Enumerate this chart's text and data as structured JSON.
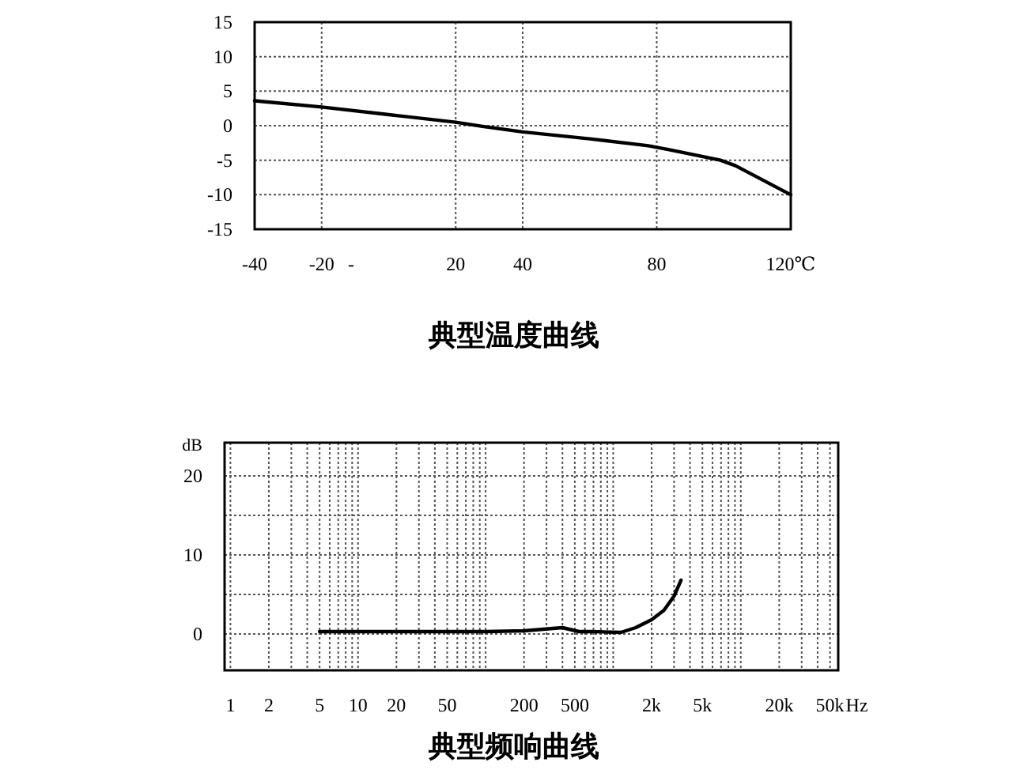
{
  "chart_data": [
    {
      "type": "line",
      "title": "典型温度曲线",
      "x": [
        -40,
        -20,
        0,
        20,
        28,
        40,
        60,
        77.5,
        84,
        99,
        103.5,
        120
      ],
      "series": [
        {
          "color": "#000000",
          "values": [
            3.6,
            2.7,
            1.6,
            0.5,
            -0.1,
            -0.9,
            -1.9,
            -2.9,
            -3.5,
            -5,
            -5.8,
            -10
          ]
        }
      ],
      "xlim": [
        -40,
        120
      ],
      "ylim": [
        -15,
        15
      ],
      "xticks": [
        -40,
        -20,
        20,
        40,
        80,
        {
          "value": 120,
          "label": "120℃"
        }
      ],
      "yticks": [
        -15,
        -10,
        -5,
        0,
        5,
        10,
        15
      ],
      "grid": true,
      "annotations": [
        "-"
      ]
    },
    {
      "type": "line",
      "title": "典型频响曲线",
      "ylabel": "dB",
      "log": "x",
      "x": [
        5,
        10,
        20,
        50,
        100,
        200,
        400,
        540,
        700,
        1150,
        1500,
        2000,
        2500,
        3000,
        3400
      ],
      "series": [
        {
          "color": "#000000",
          "values": [
            0.3,
            0.3,
            0.3,
            0.3,
            0.3,
            0.4,
            0.8,
            0.3,
            0.3,
            0.2,
            0.8,
            1.8,
            3,
            4.8,
            6.8
          ]
        }
      ],
      "xlim": [
        0.9,
        58000
      ],
      "ylim": [
        -4.6,
        24.2
      ],
      "xticks": [
        1,
        2,
        {
          "value": 3,
          "label": null
        },
        {
          "value": 4,
          "label": null
        },
        5,
        {
          "value": 6,
          "label": null
        },
        {
          "value": 7,
          "label": null
        },
        {
          "value": 8,
          "label": null
        },
        {
          "value": 9,
          "label": null
        },
        10,
        20,
        {
          "value": 30,
          "label": null
        },
        {
          "value": 40,
          "label": null
        },
        50,
        {
          "value": 60,
          "label": null
        },
        {
          "value": 70,
          "label": null
        },
        {
          "value": 80,
          "label": null
        },
        {
          "value": 90,
          "label": null
        },
        {
          "value": 100,
          "label": null
        },
        200,
        {
          "value": 300,
          "label": null
        },
        {
          "value": 400,
          "label": null
        },
        500,
        {
          "value": 600,
          "label": null
        },
        {
          "value": 700,
          "label": null
        },
        {
          "value": 800,
          "label": null
        },
        {
          "value": 900,
          "label": null
        },
        {
          "value": 1000,
          "label": null
        },
        {
          "value": 2000,
          "label": "2k"
        },
        {
          "value": 3000,
          "label": null
        },
        {
          "value": 4000,
          "label": null
        },
        {
          "value": 5000,
          "label": "5k"
        },
        {
          "value": 6000,
          "label": null
        },
        {
          "value": 7000,
          "label": null
        },
        {
          "value": 8000,
          "label": null
        },
        {
          "value": 9000,
          "label": null
        },
        {
          "value": 10000,
          "label": null
        },
        {
          "value": 20000,
          "label": "20k"
        },
        {
          "value": 30000,
          "label": null
        },
        {
          "value": 40000,
          "label": null
        },
        {
          "value": 50000,
          "label": "50k"
        }
      ],
      "xlabel": "Hz",
      "yticks": [
        0,
        {
          "value": 5,
          "label": null
        },
        10,
        {
          "value": 15,
          "label": null
        },
        20
      ],
      "grid": true
    }
  ]
}
